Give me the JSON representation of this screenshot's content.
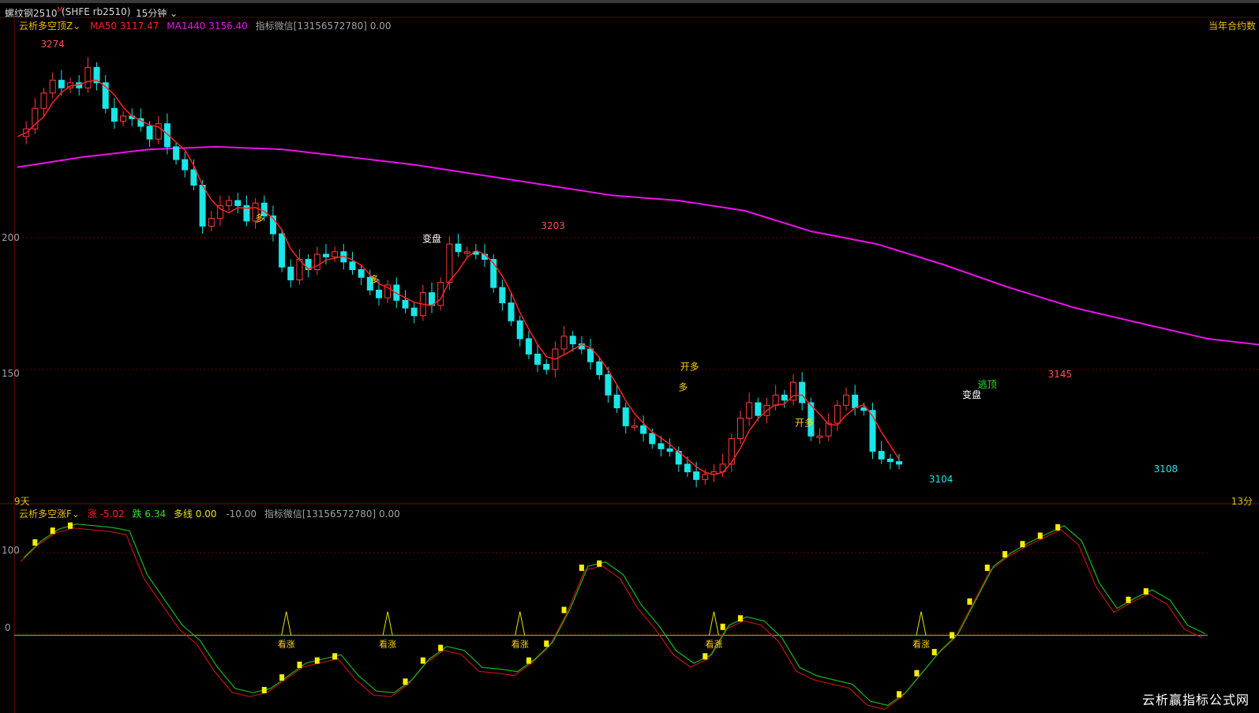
{
  "header": {
    "symbol": "螺纹钢2510",
    "symbol_badge": "M",
    "exchange_code": "(SHFE rb2510)",
    "period": "15分钟"
  },
  "main_panel": {
    "indicator_name": "云析多空顶Z",
    "ma50_label": "MA50",
    "ma50_value": "3117.47",
    "ma1440_label": "MA1440",
    "ma1440_value": "3156.40",
    "wechat_note": "指标微信[13156572780] 0.00",
    "right_note": "当年合约数",
    "left_bottom_note": "9天",
    "right_bottom_note": "13分",
    "y_ticks": [
      "200",
      "150"
    ],
    "colors": {
      "up": "#ff3b3b",
      "down": "#19e6e6",
      "ma50": "#ff2020",
      "ma1440": "#ee10ee"
    }
  },
  "sub_panel": {
    "indicator_name": "云析多空涨F",
    "rise_label": "涨",
    "rise_value": "-5.02",
    "fall_label": "跌",
    "fall_value": "6.34",
    "line_label": "多线",
    "line_value": "0.00",
    "extra_value": "-10.00",
    "wechat_note": "指标微信[13156572780] 0.00",
    "y_ticks": [
      "100",
      "0"
    ]
  },
  "watermark": "云析赢指标公式网",
  "chart_data": [
    {
      "type": "candlestick",
      "title": "",
      "series": [
        {
          "name": "MA50",
          "color": "#ff2020"
        },
        {
          "name": "MA1440",
          "color": "#ee10ee"
        }
      ],
      "ma1440_x": [
        0,
        30,
        60,
        90,
        120,
        150,
        180,
        210,
        240,
        270,
        300,
        330,
        360,
        390,
        420,
        450,
        480,
        510,
        540,
        570,
        600,
        630
      ],
      "ma1440_y": [
        3229,
        3233,
        3236,
        3237,
        3236,
        3233,
        3230,
        3226,
        3222,
        3218,
        3216,
        3212,
        3204,
        3199,
        3191,
        3182,
        3174,
        3168,
        3162,
        3159,
        3156.4,
        3155
      ],
      "close_points": [
        [
          0,
          3241
        ],
        [
          4,
          3244
        ],
        [
          8,
          3252
        ],
        [
          12,
          3258
        ],
        [
          16,
          3263
        ],
        [
          20,
          3260
        ],
        [
          24,
          3262
        ],
        [
          28,
          3260
        ],
        [
          32,
          3268
        ],
        [
          36,
          3262
        ],
        [
          40,
          3252
        ],
        [
          44,
          3247
        ],
        [
          48,
          3249
        ],
        [
          52,
          3248
        ],
        [
          56,
          3245
        ],
        [
          60,
          3240
        ],
        [
          64,
          3246
        ],
        [
          68,
          3237
        ],
        [
          72,
          3232
        ],
        [
          76,
          3228
        ],
        [
          80,
          3222
        ],
        [
          84,
          3206
        ],
        [
          88,
          3209
        ],
        [
          92,
          3214
        ],
        [
          96,
          3216
        ],
        [
          100,
          3214
        ],
        [
          104,
          3208
        ],
        [
          108,
          3215
        ],
        [
          112,
          3210
        ],
        [
          116,
          3203
        ],
        [
          120,
          3190
        ],
        [
          124,
          3185
        ],
        [
          128,
          3193
        ],
        [
          132,
          3189
        ],
        [
          136,
          3195
        ],
        [
          140,
          3194
        ],
        [
          144,
          3196
        ],
        [
          148,
          3192
        ],
        [
          152,
          3189
        ],
        [
          156,
          3186
        ],
        [
          160,
          3181
        ],
        [
          164,
          3178
        ],
        [
          168,
          3183
        ],
        [
          172,
          3177
        ],
        [
          176,
          3174
        ],
        [
          180,
          3171
        ],
        [
          184,
          3180
        ],
        [
          188,
          3175
        ],
        [
          192,
          3184
        ],
        [
          196,
          3199
        ],
        [
          200,
          3196
        ],
        [
          204,
          3196
        ],
        [
          208,
          3195
        ],
        [
          212,
          3193
        ],
        [
          216,
          3182
        ],
        [
          220,
          3176
        ],
        [
          224,
          3169
        ],
        [
          228,
          3162
        ],
        [
          232,
          3156
        ],
        [
          236,
          3152
        ],
        [
          240,
          3150
        ],
        [
          244,
          3158
        ],
        [
          248,
          3163
        ],
        [
          252,
          3160
        ],
        [
          256,
          3158
        ],
        [
          260,
          3153
        ],
        [
          264,
          3148
        ],
        [
          268,
          3140
        ],
        [
          272,
          3135
        ],
        [
          276,
          3128
        ],
        [
          280,
          3128
        ],
        [
          284,
          3125
        ],
        [
          288,
          3121
        ],
        [
          292,
          3119
        ],
        [
          296,
          3118
        ],
        [
          300,
          3113
        ],
        [
          304,
          3110
        ],
        [
          308,
          3107
        ],
        [
          312,
          3109
        ],
        [
          316,
          3110
        ],
        [
          320,
          3113
        ],
        [
          324,
          3123
        ],
        [
          328,
          3131
        ],
        [
          332,
          3137
        ],
        [
          336,
          3132
        ],
        [
          340,
          3136
        ],
        [
          344,
          3140
        ],
        [
          348,
          3138
        ],
        [
          352,
          3145
        ],
        [
          356,
          3137
        ],
        [
          360,
          3124
        ],
        [
          364,
          3124
        ],
        [
          368,
          3129
        ],
        [
          372,
          3136
        ],
        [
          376,
          3140
        ],
        [
          380,
          3135
        ],
        [
          384,
          3134
        ],
        [
          388,
          3118
        ],
        [
          392,
          3115
        ],
        [
          396,
          3114
        ],
        [
          400,
          3113
        ]
      ],
      "labels": [
        {
          "text": "3274",
          "x": 16,
          "y": 3274,
          "color": "#ff4d4d"
        },
        {
          "text": "多",
          "x": 110,
          "y": 3206,
          "color": "#ffd400"
        },
        {
          "text": "多",
          "x": 162,
          "y": 3182,
          "color": "#ffd400"
        },
        {
          "text": "变盘",
          "x": 188,
          "y": 3198,
          "color": "#ffffff"
        },
        {
          "text": "3203",
          "x": 243,
          "y": 3203,
          "color": "#ff4d4d"
        },
        {
          "text": "开多",
          "x": 305,
          "y": 3148,
          "color": "#ffd400"
        },
        {
          "text": "多",
          "x": 302,
          "y": 3140,
          "color": "#ffd400"
        },
        {
          "text": "开多",
          "x": 357,
          "y": 3126,
          "color": "#ffd400"
        },
        {
          "text": "变盘",
          "x": 433,
          "y": 3137,
          "color": "#ffffff"
        },
        {
          "text": "逃顶",
          "x": 440,
          "y": 3141,
          "color": "#27e627"
        },
        {
          "text": "3145",
          "x": 473,
          "y": 3145,
          "color": "#ff4d4d"
        },
        {
          "text": "3104",
          "x": 419,
          "y": 3104,
          "color": "#19e6e6"
        },
        {
          "text": "3108",
          "x": 521,
          "y": 3108,
          "color": "#19e6e6"
        }
      ],
      "ylim": [
        3100,
        3282
      ]
    },
    {
      "type": "line",
      "title": "",
      "series": [
        {
          "name": "涨",
          "color": "#ff2020"
        },
        {
          "name": "跌",
          "color": "#27e627"
        },
        {
          "name": "多线",
          "color": "#e6e600"
        }
      ],
      "oscillator_points": [
        [
          0,
          90
        ],
        [
          8,
          110
        ],
        [
          16,
          124
        ],
        [
          24,
          130
        ],
        [
          32,
          128
        ],
        [
          40,
          126
        ],
        [
          48,
          122
        ],
        [
          56,
          70
        ],
        [
          64,
          40
        ],
        [
          72,
          10
        ],
        [
          80,
          -8
        ],
        [
          88,
          -40
        ],
        [
          96,
          -65
        ],
        [
          104,
          -70
        ],
        [
          112,
          -65
        ],
        [
          120,
          -50
        ],
        [
          128,
          -35
        ],
        [
          136,
          -30
        ],
        [
          144,
          -25
        ],
        [
          152,
          -50
        ],
        [
          160,
          -68
        ],
        [
          168,
          -70
        ],
        [
          176,
          -55
        ],
        [
          184,
          -30
        ],
        [
          192,
          -15
        ],
        [
          200,
          -20
        ],
        [
          208,
          -40
        ],
        [
          216,
          -42
        ],
        [
          224,
          -45
        ],
        [
          232,
          -30
        ],
        [
          240,
          -10
        ],
        [
          248,
          30
        ],
        [
          256,
          80
        ],
        [
          264,
          85
        ],
        [
          272,
          70
        ],
        [
          280,
          35
        ],
        [
          288,
          10
        ],
        [
          296,
          -20
        ],
        [
          304,
          -35
        ],
        [
          312,
          -25
        ],
        [
          320,
          10
        ],
        [
          328,
          20
        ],
        [
          336,
          15
        ],
        [
          344,
          -5
        ],
        [
          352,
          -40
        ],
        [
          360,
          -50
        ],
        [
          368,
          -55
        ],
        [
          376,
          -60
        ],
        [
          384,
          -80
        ],
        [
          392,
          -85
        ],
        [
          400,
          -70
        ],
        [
          408,
          -45
        ],
        [
          416,
          -20
        ],
        [
          424,
          0
        ],
        [
          432,
          40
        ],
        [
          440,
          80
        ],
        [
          448,
          96
        ],
        [
          456,
          108
        ],
        [
          464,
          118
        ],
        [
          472,
          128
        ],
        [
          480,
          110
        ],
        [
          488,
          60
        ],
        [
          496,
          30
        ],
        [
          504,
          42
        ],
        [
          512,
          52
        ],
        [
          520,
          40
        ],
        [
          528,
          10
        ],
        [
          536,
          0
        ]
      ],
      "buy_signals": [
        {
          "text": "看涨",
          "x": 122
        },
        {
          "text": "看涨",
          "x": 168
        },
        {
          "text": "看涨",
          "x": 228
        },
        {
          "text": "看涨",
          "x": 316
        },
        {
          "text": "看涨",
          "x": 410
        }
      ],
      "ylim": [
        -80,
        140
      ]
    }
  ]
}
